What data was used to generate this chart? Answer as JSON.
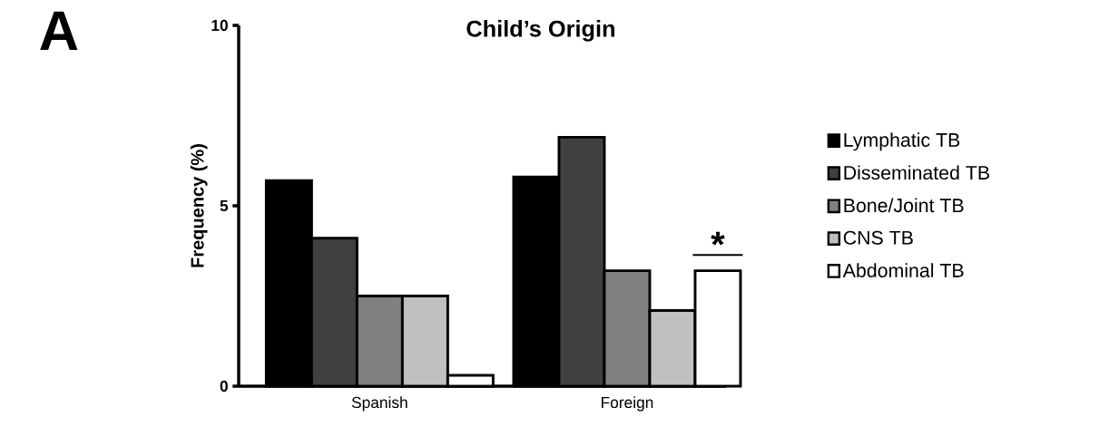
{
  "chart_data": {
    "type": "bar",
    "title": "Child’s Origin",
    "ylabel": "Frequency (%)",
    "categories": [
      "Spanish",
      "Foreign"
    ],
    "series": [
      {
        "name": "Lymphatic TB",
        "color": "#000000",
        "values": [
          5.7,
          5.8
        ]
      },
      {
        "name": "Disseminated TB",
        "color": "#404040",
        "values": [
          4.1,
          6.9
        ]
      },
      {
        "name": "Bone/Joint TB",
        "color": "#808080",
        "values": [
          2.5,
          3.2
        ]
      },
      {
        "name": "CNS TB",
        "color": "#c0c0c0",
        "values": [
          2.5,
          2.1
        ]
      },
      {
        "name": "Abdominal TB",
        "color": "#ffffff",
        "values": [
          0.3,
          3.2
        ]
      }
    ],
    "ylim": [
      0,
      10
    ],
    "yticks": [
      0,
      5,
      10
    ],
    "grid": false,
    "legend": "right",
    "annotations": [
      "A",
      {
        "text": "*",
        "x": "Foreign",
        "y": 3.2
      }
    ]
  }
}
